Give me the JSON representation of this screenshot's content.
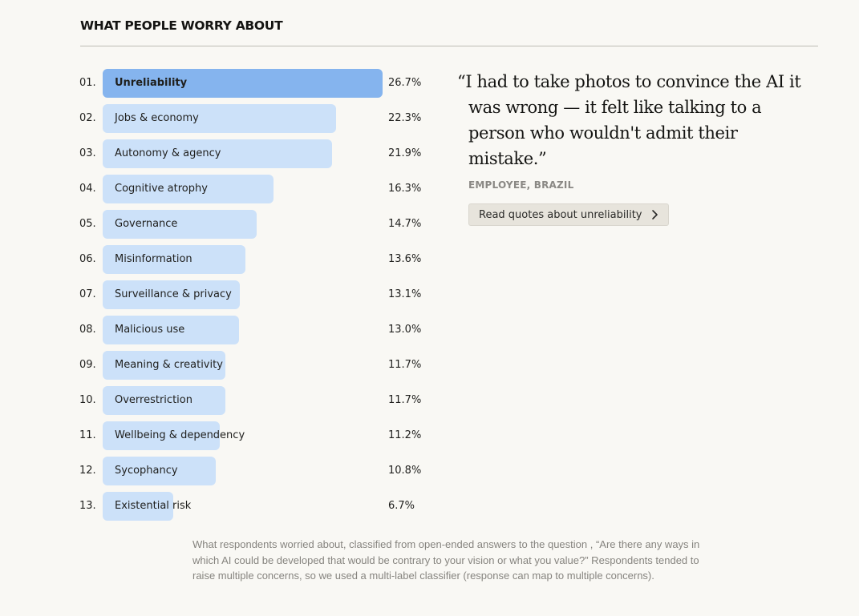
{
  "section": {
    "title": "WHAT PEOPLE WORRY ABOUT"
  },
  "chart_data": {
    "type": "bar",
    "orientation": "horizontal",
    "title": "WHAT PEOPLE WORRY ABOUT",
    "xlabel": "",
    "ylabel": "",
    "unit": "%",
    "xlim": [
      0,
      26.7
    ],
    "grid": false,
    "highlighted_index": 0,
    "colors": {
      "highlight": "#85b4ee",
      "default": "#cce1f9"
    },
    "ranks": [
      "01.",
      "02.",
      "03.",
      "04.",
      "05.",
      "06.",
      "07.",
      "08.",
      "09.",
      "10.",
      "11.",
      "12.",
      "13."
    ],
    "categories": [
      "Unreliability",
      "Jobs & economy",
      "Autonomy & agency",
      "Cognitive atrophy",
      "Governance",
      "Misinformation",
      "Surveillance & privacy",
      "Malicious use",
      "Meaning & creativity",
      "Overrestriction",
      "Wellbeing & dependency",
      "Sycophancy",
      "Existential risk"
    ],
    "values": [
      26.7,
      22.3,
      21.9,
      16.3,
      14.7,
      13.6,
      13.1,
      13.0,
      11.7,
      11.7,
      11.2,
      10.8,
      6.7
    ],
    "value_labels": [
      "26.7%",
      "22.3%",
      "21.9%",
      "16.3%",
      "14.7%",
      "13.6%",
      "13.1%",
      "13.0%",
      "11.7%",
      "11.7%",
      "11.2%",
      "10.8%",
      "6.7%"
    ]
  },
  "quote": {
    "text": "“I had to take photos to convince the AI it was wrong — it felt like talking to a person who wouldn't admit their mistake.”",
    "attribution": "EMPLOYEE, BRAZIL",
    "button_label": "Read quotes about unreliability",
    "button_icon": "chevron-right-icon"
  },
  "caption": {
    "text": "What respondents worried about, classified from open-ended answers to the question , “Are there any ways in which AI could be developed that would be contrary to your vision or what you value?” Respondents tended to raise multiple concerns, so we used a multi-label classifier (response can map to multiple concerns)."
  }
}
